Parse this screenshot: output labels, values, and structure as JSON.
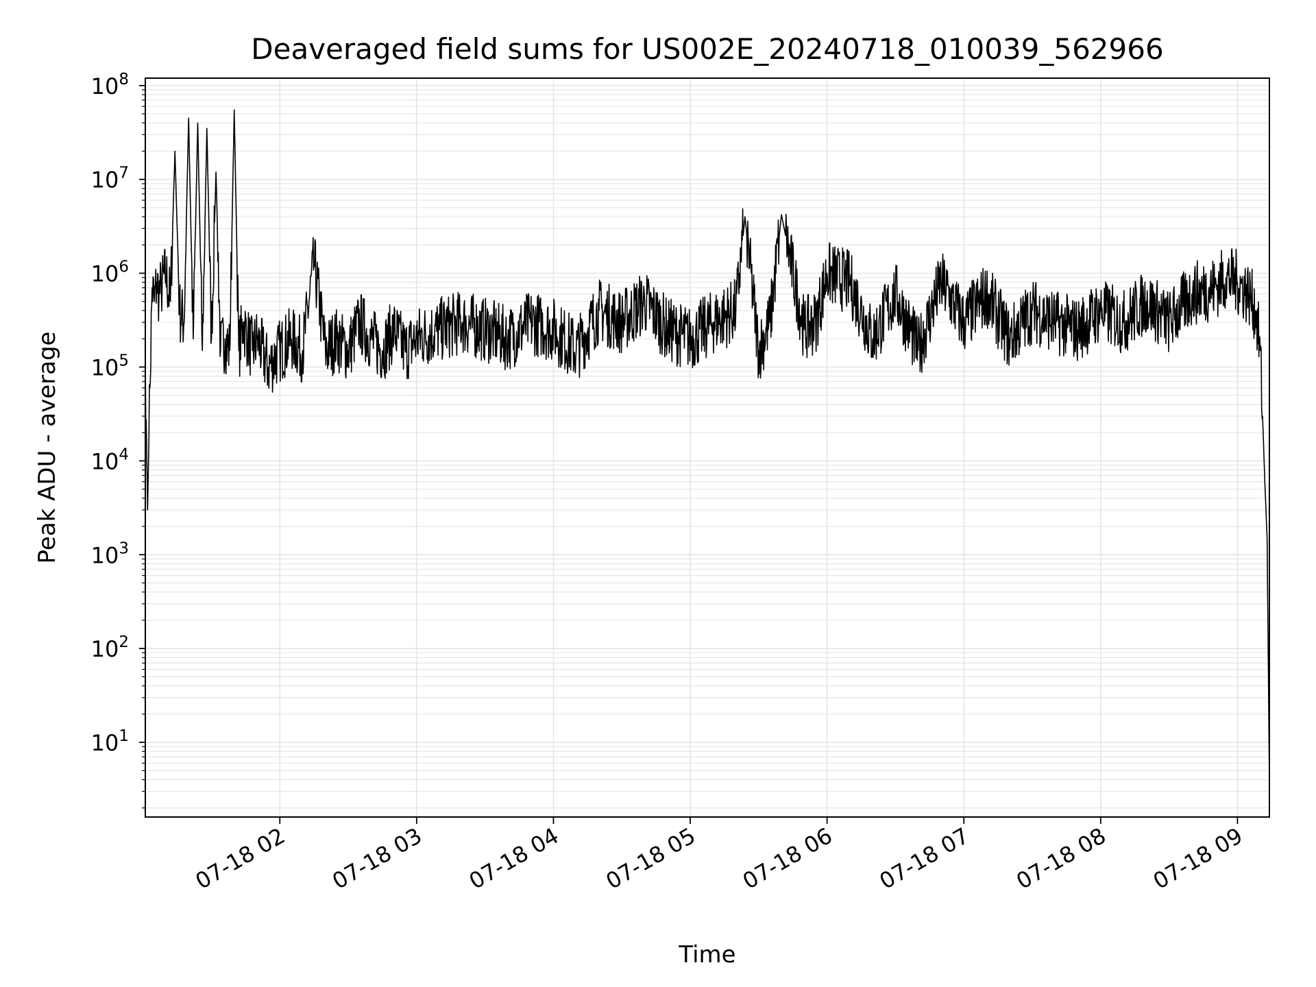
{
  "chart_data": {
    "type": "line",
    "title": "Deaveraged field sums for US002E_20240718_010039_562966",
    "xlabel": "Time",
    "ylabel": "Peak ADU - average",
    "yscale": "log",
    "ylim": [
      1.6,
      120000000
    ],
    "xlim": [
      "2024-07-18 01:01",
      "2024-07-18 09:14"
    ],
    "grid": true,
    "legend": "none",
    "line_color": "#000000",
    "grid_color": "#e5e5e5",
    "x_ticks": [
      "07-18 02",
      "07-18 03",
      "07-18 04",
      "07-18 05",
      "07-18 06",
      "07-18 07",
      "07-18 08",
      "07-18 09"
    ],
    "y_ticks": [
      {
        "base": "10",
        "exp": "1",
        "value": 10
      },
      {
        "base": "10",
        "exp": "2",
        "value": 100
      },
      {
        "base": "10",
        "exp": "3",
        "value": 1000
      },
      {
        "base": "10",
        "exp": "4",
        "value": 10000
      },
      {
        "base": "10",
        "exp": "5",
        "value": 100000
      },
      {
        "base": "10",
        "exp": "6",
        "value": 1000000
      },
      {
        "base": "10",
        "exp": "7",
        "value": 10000000
      },
      {
        "base": "10",
        "exp": "8",
        "value": 100000000
      }
    ],
    "series": [
      {
        "x": [
          "2024-07-18 01:01",
          "2024-07-18 01:02",
          "2024-07-18 01:03",
          "2024-07-18 01:04",
          "2024-07-18 01:05",
          "2024-07-18 01:06",
          "2024-07-18 01:07",
          "2024-07-18 01:08",
          "2024-07-18 01:10",
          "2024-07-18 01:12",
          "2024-07-18 01:14",
          "2024-07-18 01:16",
          "2024-07-18 01:18",
          "2024-07-18 01:20",
          "2024-07-18 01:22",
          "2024-07-18 01:24",
          "2024-07-18 01:26",
          "2024-07-18 01:28",
          "2024-07-18 01:30",
          "2024-07-18 01:32",
          "2024-07-18 01:34",
          "2024-07-18 01:36",
          "2024-07-18 01:38",
          "2024-07-18 01:40",
          "2024-07-18 01:42",
          "2024-07-18 01:44",
          "2024-07-18 01:46",
          "2024-07-18 01:48",
          "2024-07-18 01:50",
          "2024-07-18 01:55",
          "2024-07-18 02:00",
          "2024-07-18 02:05",
          "2024-07-18 02:10",
          "2024-07-18 02:15",
          "2024-07-18 02:20",
          "2024-07-18 02:25",
          "2024-07-18 02:30",
          "2024-07-18 02:35",
          "2024-07-18 02:40",
          "2024-07-18 02:45",
          "2024-07-18 02:50",
          "2024-07-18 02:55",
          "2024-07-18 03:00",
          "2024-07-18 03:10",
          "2024-07-18 03:20",
          "2024-07-18 03:30",
          "2024-07-18 03:40",
          "2024-07-18 03:50",
          "2024-07-18 04:00",
          "2024-07-18 04:10",
          "2024-07-18 04:20",
          "2024-07-18 04:30",
          "2024-07-18 04:40",
          "2024-07-18 04:50",
          "2024-07-18 05:00",
          "2024-07-18 05:10",
          "2024-07-18 05:20",
          "2024-07-18 05:24",
          "2024-07-18 05:30",
          "2024-07-18 05:35",
          "2024-07-18 05:40",
          "2024-07-18 05:50",
          "2024-07-18 05:55",
          "2024-07-18 06:00",
          "2024-07-18 06:10",
          "2024-07-18 06:20",
          "2024-07-18 06:30",
          "2024-07-18 06:40",
          "2024-07-18 06:50",
          "2024-07-18 07:00",
          "2024-07-18 07:10",
          "2024-07-18 07:20",
          "2024-07-18 07:30",
          "2024-07-18 07:40",
          "2024-07-18 07:50",
          "2024-07-18 08:00",
          "2024-07-18 08:10",
          "2024-07-18 08:20",
          "2024-07-18 08:30",
          "2024-07-18 08:40",
          "2024-07-18 08:50",
          "2024-07-18 08:55",
          "2024-07-18 09:00",
          "2024-07-18 09:05",
          "2024-07-18 09:08",
          "2024-07-18 09:10",
          "2024-07-18 09:11",
          "2024-07-18 09:12",
          "2024-07-18 09:13",
          "2024-07-18 09:14"
        ],
        "y": [
          120000,
          3000,
          60000,
          700000,
          500000,
          800000,
          600000,
          700000,
          1000000,
          500000,
          20000000,
          400000,
          300000,
          45000000,
          200000,
          40000000,
          150000,
          35000000,
          200000,
          12000000,
          150000,
          200000,
          150000,
          55000000,
          150000,
          300000,
          200000,
          150000,
          200000,
          100000,
          150000,
          200000,
          150000,
          1300000,
          150000,
          200000,
          150000,
          300000,
          200000,
          150000,
          250000,
          150000,
          200000,
          250000,
          300000,
          250000,
          200000,
          300000,
          250000,
          150000,
          400000,
          300000,
          500000,
          250000,
          200000,
          300000,
          400000,
          4000000,
          150000,
          300000,
          4200000,
          250000,
          300000,
          1000000,
          800000,
          200000,
          600000,
          150000,
          800000,
          300000,
          600000,
          200000,
          400000,
          300000,
          250000,
          400000,
          300000,
          500000,
          300000,
          600000,
          700000,
          900000,
          800000,
          600000,
          400000,
          150000,
          30000,
          6000,
          1500,
          4
        ]
      }
    ]
  }
}
